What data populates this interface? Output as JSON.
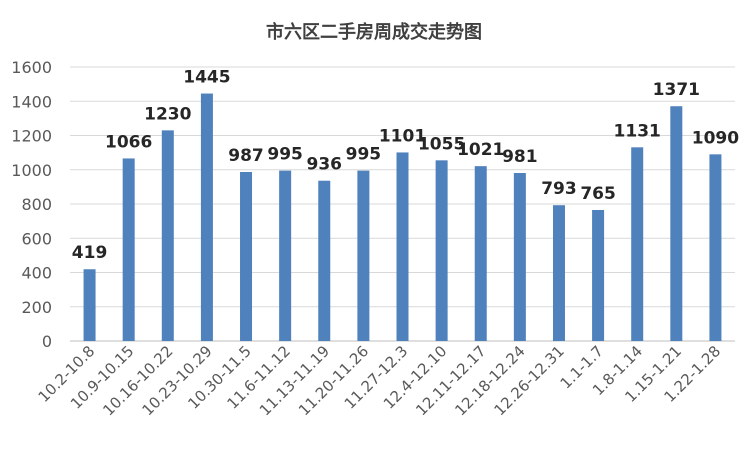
{
  "chart_data": {
    "type": "bar",
    "title": "市六区二手房周成交走势图",
    "xlabel": "",
    "ylabel": "",
    "ylim": [
      0,
      1600
    ],
    "yticks": [
      0,
      200,
      400,
      600,
      800,
      1000,
      1200,
      1400,
      1600
    ],
    "grid": true,
    "legend": "none",
    "bar_color": "#4F81BD",
    "categories": [
      "10.2-10.8",
      "10.9-10.15",
      "10.16-10.22",
      "10.23-10.29",
      "10.30-11.5",
      "11.6-11.12",
      "11.13-11.19",
      "11.20-11.26",
      "11.27-12.3",
      "12.4-12.10",
      "12.11-12.17",
      "12.18-12.24",
      "12.26-12.31",
      "1.1-1.7",
      "1.8-1.14",
      "1.15-1.21",
      "1.22-1.28"
    ],
    "values": [
      419,
      1066,
      1230,
      1445,
      987,
      995,
      936,
      995,
      1101,
      1055,
      1021,
      981,
      793,
      765,
      1131,
      1371,
      1090
    ],
    "data_labels": [
      "419",
      "1066",
      "1230",
      "1445",
      "987",
      "995",
      "936",
      "995",
      "1101",
      "1055",
      "1021",
      "981",
      "793",
      "765",
      "1131",
      "1371",
      "1090"
    ]
  }
}
